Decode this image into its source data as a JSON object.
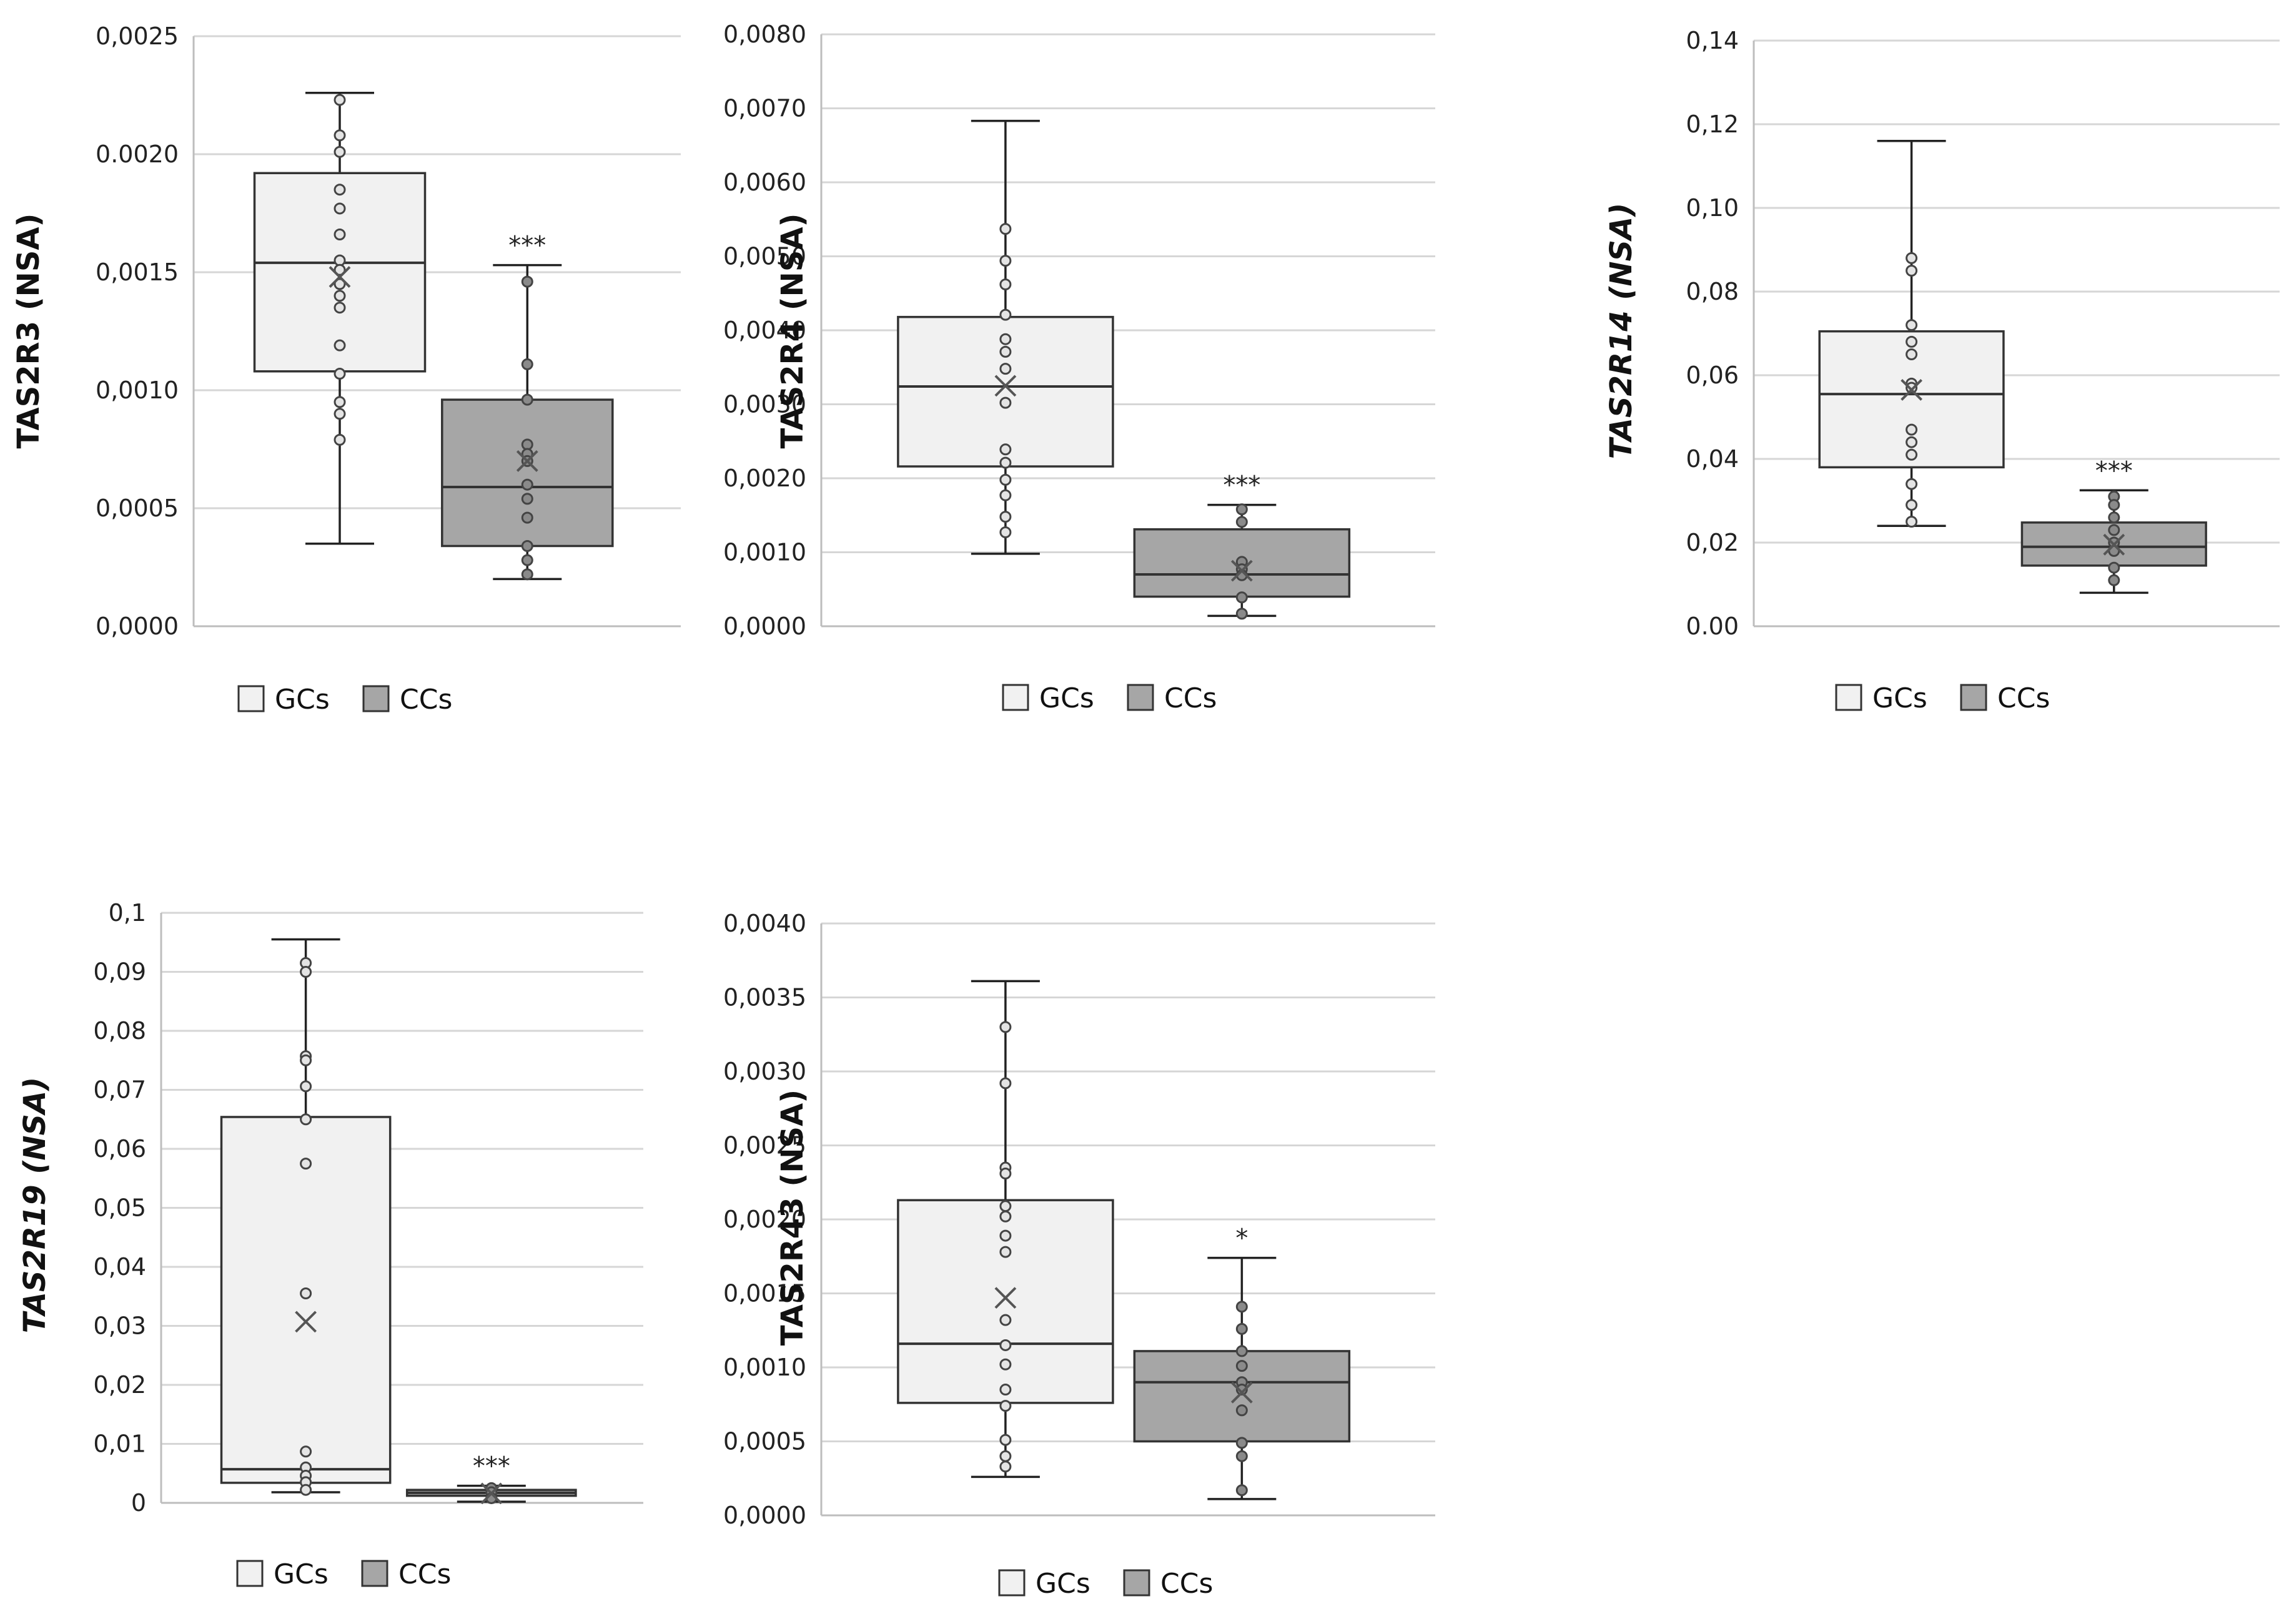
{
  "colors": {
    "gcs": "#f1f1f1",
    "ccs": "#a6a6a6",
    "point_gcs": "#e4e4e4",
    "point_ccs": "#8a8a8a",
    "grid": "#d6d6d6"
  },
  "legend": {
    "gcs_label": "GCs",
    "ccs_label": "CCs"
  },
  "chart_data": [
    {
      "type": "boxplot",
      "ylabel": "TAS2R3 (NSA)",
      "ylabel_italic": false,
      "ylim": [
        0,
        0.0025
      ],
      "ticks": [
        0,
        0.0005,
        0.001,
        0.0015,
        0.002,
        0.0025
      ],
      "tick_labels": [
        "0,0000",
        "0,0005",
        "0,0010",
        "0,0015",
        "0.0020",
        "0,0025"
      ],
      "groups": [
        {
          "name": "GCs",
          "whisker_low": 0.00035,
          "q1": 0.00108,
          "median": 0.00154,
          "q3": 0.00192,
          "whisker_high": 0.00226,
          "mean": 0.00148,
          "points": [
            0.00223,
            0.00208,
            0.00201,
            0.00185,
            0.00177,
            0.00166,
            0.00155,
            0.00151,
            0.00145,
            0.0014,
            0.00135,
            0.00119,
            0.00107,
            0.00095,
            0.0009,
            0.00079
          ]
        },
        {
          "name": "CCs",
          "whisker_low": 0.0002,
          "q1": 0.00034,
          "median": 0.00059,
          "q3": 0.00096,
          "whisker_high": 0.00153,
          "mean": 0.0007,
          "significance": "***",
          "points": [
            0.00146,
            0.00111,
            0.00096,
            0.00077,
            0.00073,
            0.0007,
            0.0006,
            0.00054,
            0.00046,
            0.00034,
            0.00028,
            0.00022
          ]
        }
      ]
    },
    {
      "type": "boxplot",
      "ylabel": "TAS2R4 (NSA)",
      "ylabel_italic": false,
      "ylim": [
        0,
        0.008
      ],
      "ticks": [
        0,
        0.001,
        0.002,
        0.003,
        0.004,
        0.005,
        0.006,
        0.007,
        0.008
      ],
      "tick_labels": [
        "0,0000",
        "0,0010",
        "0,0020",
        "0,0030",
        "0,0040",
        "0,0050",
        "0,0060",
        "0,0070",
        "0,0080"
      ],
      "groups": [
        {
          "name": "GCs",
          "whisker_low": 0.00098,
          "q1": 0.00216,
          "median": 0.00324,
          "q3": 0.00418,
          "whisker_high": 0.00683,
          "mean": 0.00325,
          "points": [
            0.00537,
            0.00494,
            0.00462,
            0.00421,
            0.00388,
            0.00371,
            0.00348,
            0.00302,
            0.00239,
            0.00221,
            0.00198,
            0.00177,
            0.00148,
            0.00127
          ]
        },
        {
          "name": "CCs",
          "whisker_low": 0.00014,
          "q1": 0.0004,
          "median": 0.0007,
          "q3": 0.00131,
          "whisker_high": 0.00164,
          "mean": 0.00075,
          "significance": "***",
          "points": [
            0.00158,
            0.00141,
            0.00087,
            0.00077,
            0.00069,
            0.00039,
            0.00017
          ]
        }
      ]
    },
    {
      "type": "boxplot",
      "ylabel": "TAS2R14 (NSA)",
      "ylabel_italic": true,
      "ylim": [
        0,
        0.14
      ],
      "ticks": [
        0,
        0.02,
        0.04,
        0.06,
        0.08,
        0.1,
        0.12,
        0.14
      ],
      "tick_labels": [
        "0.00",
        "0,02",
        "0,04",
        "0,06",
        "0,08",
        "0,10",
        "0,12",
        "0,14"
      ],
      "groups": [
        {
          "name": "GCs",
          "whisker_low": 0.024,
          "q1": 0.038,
          "median": 0.0555,
          "q3": 0.0705,
          "whisker_high": 0.116,
          "mean": 0.0565,
          "points": [
            0.088,
            0.085,
            0.072,
            0.068,
            0.065,
            0.058,
            0.057,
            0.047,
            0.044,
            0.041,
            0.034,
            0.029,
            0.025
          ]
        },
        {
          "name": "CCs",
          "whisker_low": 0.008,
          "q1": 0.0145,
          "median": 0.019,
          "q3": 0.0248,
          "whisker_high": 0.0325,
          "mean": 0.0195,
          "significance": "***",
          "points": [
            0.031,
            0.029,
            0.026,
            0.023,
            0.02,
            0.018,
            0.014,
            0.011
          ]
        }
      ]
    },
    {
      "type": "boxplot",
      "ylabel": "TAS2R19 (NSA)",
      "ylabel_italic": true,
      "ylim": [
        0,
        0.1
      ],
      "ticks": [
        0,
        0.01,
        0.02,
        0.03,
        0.04,
        0.05,
        0.06,
        0.07,
        0.08,
        0.09,
        0.1
      ],
      "tick_labels": [
        "0",
        "0,01",
        "0,02",
        "0,03",
        "0,04",
        "0,05",
        "0,06",
        "0,07",
        "0,08",
        "0,09",
        "0,1"
      ],
      "groups": [
        {
          "name": "GCs",
          "whisker_low": 0.0018,
          "q1": 0.0034,
          "median": 0.0057,
          "q3": 0.0654,
          "whisker_high": 0.0955,
          "mean": 0.0307,
          "points": [
            0.0915,
            0.09,
            0.0757,
            0.075,
            0.0706,
            0.065,
            0.0575,
            0.0355,
            0.0087,
            0.006,
            0.0046,
            0.0035,
            0.0022
          ]
        },
        {
          "name": "CCs",
          "whisker_low": 0.0002,
          "q1": 0.0012,
          "median": 0.0017,
          "q3": 0.0022,
          "whisker_high": 0.0029,
          "mean": 0.0016,
          "significance": "***",
          "points": [
            0.0025,
            0.0018,
            0.0008
          ]
        }
      ]
    },
    {
      "type": "boxplot",
      "ylabel": "TAS2R43 (NSA)",
      "ylabel_italic": false,
      "ylim": [
        0,
        0.004
      ],
      "ticks": [
        0,
        0.0005,
        0.001,
        0.0015,
        0.002,
        0.0025,
        0.003,
        0.0035,
        0.004
      ],
      "tick_labels": [
        "0,0000",
        "0,0005",
        "0,0010",
        "0,0015",
        "0,0020",
        "0,0025",
        "0,0030",
        "0,0035",
        "0,0040"
      ],
      "groups": [
        {
          "name": "GCs",
          "whisker_low": 0.00026,
          "q1": 0.00076,
          "median": 0.00116,
          "q3": 0.00213,
          "whisker_high": 0.00361,
          "mean": 0.00147,
          "points": [
            0.0033,
            0.00292,
            0.00235,
            0.00231,
            0.00209,
            0.00202,
            0.00189,
            0.00178,
            0.00132,
            0.00115,
            0.00102,
            0.00085,
            0.00074,
            0.00051,
            0.0004,
            0.00033
          ]
        },
        {
          "name": "CCs",
          "whisker_low": 0.00011,
          "q1": 0.0005,
          "median": 0.0009,
          "q3": 0.00111,
          "whisker_high": 0.00174,
          "mean": 0.00083,
          "significance": "*",
          "points": [
            0.00141,
            0.00126,
            0.00111,
            0.00101,
            0.0009,
            0.00085,
            0.00071,
            0.00049,
            0.0004,
            0.00017
          ]
        }
      ]
    }
  ]
}
